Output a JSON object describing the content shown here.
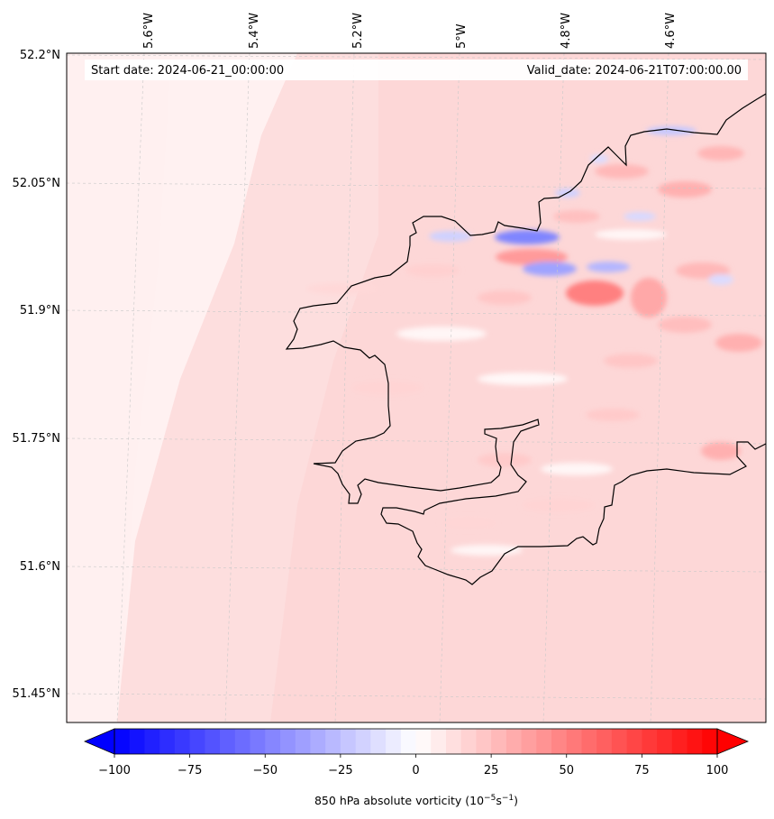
{
  "info": {
    "start_date": "Start date: 2024-06-21_00:00:00",
    "valid_date": "Valid_date: 2024-06-21T07:00:00.00"
  },
  "axes": {
    "lon_labels": [
      "5.6°W",
      "5.4°W",
      "5.2°W",
      "5°W",
      "4.8°W",
      "4.6°W"
    ],
    "lat_labels": [
      "52.2°N",
      "52.05°N",
      "51.9°N",
      "51.75°N",
      "51.6°N",
      "51.45°N"
    ]
  },
  "colorbar": {
    "ticks": [
      "−100",
      "−75",
      "−50",
      "−25",
      "0",
      "25",
      "50",
      "75",
      "100"
    ],
    "label_main": "850 hPa absolute vorticity (10",
    "label_exp1": "−5",
    "label_mid": "s",
    "label_exp2": "−1",
    "label_end": ")",
    "min": -100,
    "max": 100,
    "levels": 40,
    "colormap": "bwr",
    "extend": "both"
  },
  "map": {
    "land_color": "#fde6e6",
    "coastline_color": "#000000",
    "gridlines": true
  }
}
